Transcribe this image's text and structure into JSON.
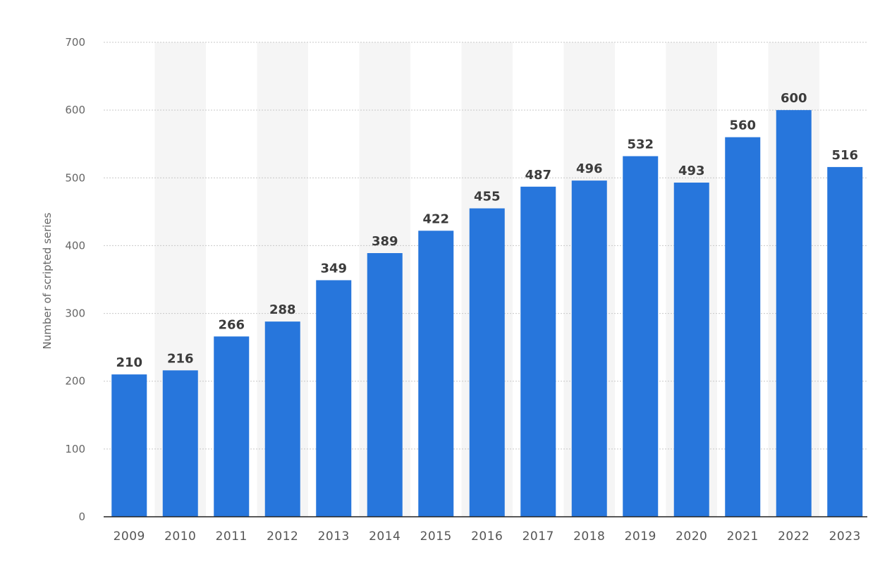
{
  "chart_data": {
    "type": "bar",
    "title": "",
    "xlabel": "",
    "ylabel": "Number of scripted series",
    "categories": [
      "2009",
      "2010",
      "2011",
      "2012",
      "2013",
      "2014",
      "2015",
      "2016",
      "2017",
      "2018",
      "2019",
      "2020",
      "2021",
      "2022",
      "2023"
    ],
    "values": [
      210,
      216,
      266,
      288,
      349,
      389,
      422,
      455,
      487,
      496,
      532,
      493,
      560,
      600,
      516
    ],
    "data_labels": [
      "210",
      "216",
      "266",
      "288",
      "349",
      "389",
      "422",
      "455",
      "487",
      "496",
      "532",
      "493",
      "560",
      "600",
      "516"
    ],
    "ylim": [
      0,
      700
    ],
    "yticks": [
      0,
      100,
      200,
      300,
      400,
      500,
      600,
      700
    ],
    "grid": true,
    "legend": "none",
    "colors": {
      "bar": "#2776dc",
      "grid": "#c7c7c7",
      "band": "#f5f5f5",
      "axis": "#222222",
      "tick_text": "#666666",
      "label_text": "#3c3c3c"
    }
  }
}
